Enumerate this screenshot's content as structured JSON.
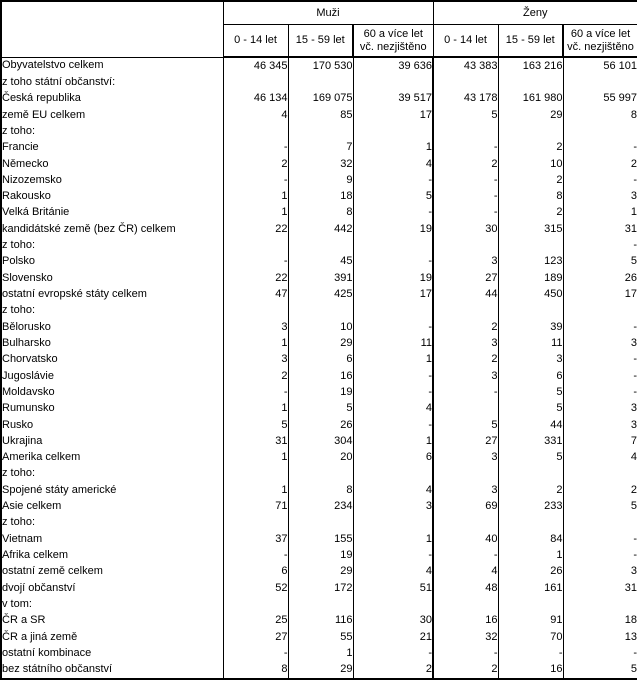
{
  "table": {
    "header": {
      "corner": "",
      "groups": [
        {
          "label": "Muži"
        },
        {
          "label": "Ženy"
        }
      ],
      "age_col1": "0 - 14 let",
      "age_col2": "15 - 59 let",
      "age_col3_line1": "60 a více let",
      "age_col3_line2": "vč. nezjištěno"
    },
    "rows": [
      {
        "label": "Obyvatelstvo celkem",
        "indent": 0,
        "bold": true,
        "values": [
          "46 345",
          "170 530",
          "39 636",
          "43 383",
          "163 216",
          "56 101"
        ]
      },
      {
        "label": "z toho státní občanství:",
        "indent": 1,
        "bold": false,
        "values": [
          "",
          "",
          "",
          "",
          "",
          ""
        ]
      },
      {
        "label": "Česká republika",
        "indent": 2,
        "bold": true,
        "values": [
          "46 134",
          "169 075",
          "39 517",
          "43 178",
          "161 980",
          "55 997"
        ]
      },
      {
        "label": "země EU celkem",
        "indent": 2,
        "bold": true,
        "values": [
          "4",
          "85",
          "17",
          "5",
          "29",
          "8"
        ]
      },
      {
        "label": "z toho:",
        "indent": 3,
        "bold": false,
        "values": [
          "",
          "",
          "",
          "",
          "",
          ""
        ]
      },
      {
        "label": "Francie",
        "indent": 4,
        "bold": false,
        "values": [
          "-",
          "7",
          "1",
          "-",
          "2",
          "-"
        ]
      },
      {
        "label": "Německo",
        "indent": 4,
        "bold": false,
        "values": [
          "2",
          "32",
          "4",
          "2",
          "10",
          "2"
        ]
      },
      {
        "label": "Nizozemsko",
        "indent": 4,
        "bold": false,
        "values": [
          "-",
          "9",
          "-",
          "-",
          "2",
          "-"
        ]
      },
      {
        "label": "Rakousko",
        "indent": 4,
        "bold": false,
        "values": [
          "1",
          "18",
          "5",
          "-",
          "8",
          "3"
        ]
      },
      {
        "label": "Velká Británie",
        "indent": 4,
        "bold": false,
        "values": [
          "1",
          "8",
          "-",
          "-",
          "2",
          "1"
        ]
      },
      {
        "label": "kandidátské země (bez ČR) celkem",
        "indent": 2,
        "bold": true,
        "values": [
          "22",
          "442",
          "19",
          "30",
          "315",
          "31"
        ]
      },
      {
        "label": "z toho:",
        "indent": 3,
        "bold": false,
        "values": [
          "",
          "",
          "",
          "",
          "",
          "-"
        ]
      },
      {
        "label": "Polsko",
        "indent": 4,
        "bold": false,
        "values": [
          "-",
          "45",
          "-",
          "3",
          "123",
          "5"
        ]
      },
      {
        "label": "Slovensko",
        "indent": 4,
        "bold": false,
        "values": [
          "22",
          "391",
          "19",
          "27",
          "189",
          "26"
        ]
      },
      {
        "label": "ostatní evropské státy celkem",
        "indent": 2,
        "bold": true,
        "values": [
          "47",
          "425",
          "17",
          "44",
          "450",
          "17"
        ]
      },
      {
        "label": "z toho:",
        "indent": 3,
        "bold": false,
        "values": [
          "",
          "",
          "",
          "",
          "",
          ""
        ]
      },
      {
        "label": "Bělorusko",
        "indent": 4,
        "bold": false,
        "values": [
          "3",
          "10",
          "-",
          "2",
          "39",
          "-"
        ]
      },
      {
        "label": "Bulharsko",
        "indent": 4,
        "bold": false,
        "values": [
          "1",
          "29",
          "11",
          "3",
          "11",
          "3"
        ]
      },
      {
        "label": "Chorvatsko",
        "indent": 4,
        "bold": false,
        "values": [
          "3",
          "6",
          "1",
          "2",
          "3",
          "-"
        ]
      },
      {
        "label": "Jugoslávie",
        "indent": 4,
        "bold": false,
        "values": [
          "2",
          "16",
          "-",
          "3",
          "6",
          "-"
        ]
      },
      {
        "label": "Moldavsko",
        "indent": 4,
        "bold": false,
        "values": [
          "-",
          "19",
          "-",
          "-",
          "5",
          "-"
        ]
      },
      {
        "label": "Rumunsko",
        "indent": 4,
        "bold": false,
        "values": [
          "1",
          "5",
          "4",
          "",
          "5",
          "3"
        ]
      },
      {
        "label": "Rusko",
        "indent": 4,
        "bold": false,
        "values": [
          "5",
          "26",
          "-",
          "5",
          "44",
          "3"
        ]
      },
      {
        "label": "Ukrajina",
        "indent": 4,
        "bold": false,
        "values": [
          "31",
          "304",
          "1",
          "27",
          "331",
          "7"
        ]
      },
      {
        "label": "Amerika celkem",
        "indent": 2,
        "bold": true,
        "values": [
          "1",
          "20",
          "6",
          "3",
          "5",
          "4"
        ]
      },
      {
        "label": "z toho:",
        "indent": 3,
        "bold": false,
        "values": [
          "",
          "",
          "",
          "",
          "",
          ""
        ]
      },
      {
        "label": "Spojené státy americké",
        "indent": 4,
        "bold": false,
        "values": [
          "1",
          "8",
          "4",
          "3",
          "2",
          "2"
        ]
      },
      {
        "label": "Asie celkem",
        "indent": 2,
        "bold": true,
        "values": [
          "71",
          "234",
          "3",
          "69",
          "233",
          "5"
        ]
      },
      {
        "label": "z toho:",
        "indent": 3,
        "bold": false,
        "values": [
          "",
          "",
          "",
          "",
          "",
          ""
        ]
      },
      {
        "label": "Vietnam",
        "indent": 4,
        "bold": false,
        "values": [
          "37",
          "155",
          "1",
          "40",
          "84",
          "-"
        ]
      },
      {
        "label": "Afrika celkem",
        "indent": 2,
        "bold": true,
        "values": [
          "-",
          "19",
          "-",
          "-",
          "1",
          "-"
        ]
      },
      {
        "label": "ostatní země celkem",
        "indent": 2,
        "bold": true,
        "values": [
          "6",
          "29",
          "4",
          "4",
          "26",
          "3"
        ]
      },
      {
        "label": "dvojí občanství",
        "indent": 2,
        "bold": true,
        "values": [
          "52",
          "172",
          "51",
          "48",
          "161",
          "31"
        ]
      },
      {
        "label": "v tom:",
        "indent": 3,
        "bold": false,
        "values": [
          "",
          "",
          "",
          "",
          "",
          ""
        ]
      },
      {
        "label": "ČR a SR",
        "indent": 4,
        "bold": false,
        "values": [
          "25",
          "116",
          "30",
          "16",
          "91",
          "18"
        ]
      },
      {
        "label": "ČR a jiná země",
        "indent": 4,
        "bold": false,
        "values": [
          "27",
          "55",
          "21",
          "32",
          "70",
          "13"
        ]
      },
      {
        "label": "ostatní kombinace",
        "indent": 4,
        "bold": false,
        "values": [
          "-",
          "1",
          "-",
          "-",
          "-",
          "-"
        ]
      },
      {
        "label": "bez státního občanství",
        "indent": 2,
        "bold": true,
        "values": [
          "8",
          "29",
          "2",
          "2",
          "16",
          "5"
        ]
      }
    ],
    "colors": {
      "border": "#000000",
      "text": "#000000",
      "background": "#ffffff"
    }
  }
}
